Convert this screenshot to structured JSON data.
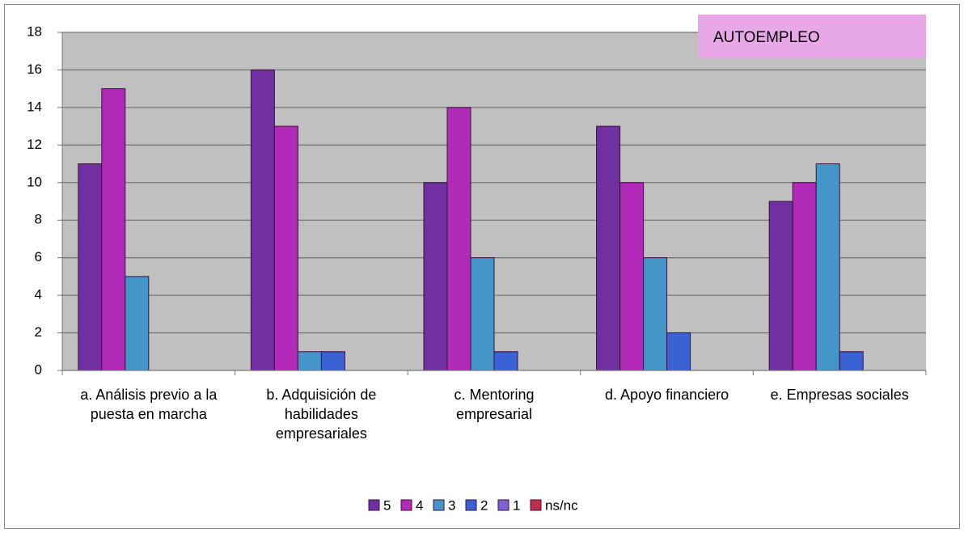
{
  "chart_data": {
    "type": "bar",
    "title": "AUTOEMPLEO",
    "categories": [
      "a. Análisis previo a la puesta en marcha",
      "b. Adquisición de habilidades empresariales",
      "c. Mentoring empresarial",
      "d. Apoyo financiero",
      "e. Empresas sociales"
    ],
    "series": [
      {
        "name": "5",
        "color": "#7030a0",
        "values": [
          11,
          16,
          10,
          13,
          9
        ]
      },
      {
        "name": "4",
        "color": "#b12ab8",
        "values": [
          15,
          13,
          14,
          10,
          10
        ]
      },
      {
        "name": "3",
        "color": "#4596c8",
        "values": [
          5,
          1,
          6,
          6,
          11
        ]
      },
      {
        "name": "2",
        "color": "#3a62d4",
        "values": [
          0,
          1,
          1,
          2,
          1
        ]
      },
      {
        "name": "1",
        "color": "#7b62d2",
        "values": [
          0,
          0,
          0,
          0,
          0
        ]
      },
      {
        "name": "ns/nc",
        "color": "#c0304c",
        "values": [
          0,
          0,
          0,
          0,
          0
        ]
      }
    ],
    "ylim": [
      0,
      18
    ],
    "yticks": [
      0,
      2,
      4,
      6,
      8,
      10,
      12,
      14,
      16,
      18
    ],
    "grid": true,
    "legend": "bottom"
  }
}
